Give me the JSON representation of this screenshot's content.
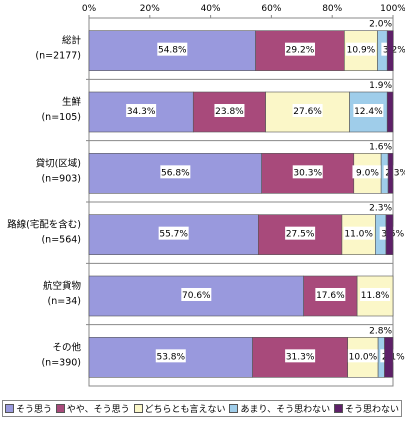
{
  "chart_data": {
    "type": "bar",
    "orientation": "horizontal",
    "stacked": true,
    "x_ticks": [
      "0%",
      "20%",
      "40%",
      "60%",
      "80%",
      "100%"
    ],
    "xlim": [
      0,
      100
    ],
    "categories": [
      {
        "name": "総計",
        "n": "(n=2177)"
      },
      {
        "name": "生鮮",
        "n": "(n=105)"
      },
      {
        "name": "貸切(区域)",
        "n": "(n=903)"
      },
      {
        "name": "路線(宅配を含む)",
        "n": "(n=564)"
      },
      {
        "name": "航空貨物",
        "n": "(n=34)"
      },
      {
        "name": "その他",
        "n": "(n=390)"
      }
    ],
    "series": [
      {
        "name": "そう思う",
        "color": "#9999dd",
        "values": [
          54.8,
          34.3,
          56.8,
          55.7,
          70.6,
          53.8
        ]
      },
      {
        "name": "やや、そう思う",
        "color": "#a84a7b",
        "values": [
          29.2,
          23.8,
          30.3,
          27.5,
          17.6,
          31.3
        ]
      },
      {
        "name": "どちらとも言えない",
        "color": "#fbf7c8",
        "values": [
          10.9,
          27.6,
          9.0,
          11.0,
          11.8,
          10.0
        ]
      },
      {
        "name": "あまり、そう思わない",
        "color": "#9fcdea",
        "values": [
          3.2,
          12.4,
          2.3,
          3.5,
          0,
          2.1
        ]
      },
      {
        "name": "そう思わない",
        "color": "#5e2068",
        "values": [
          2.0,
          1.9,
          1.6,
          2.3,
          0,
          2.8
        ]
      }
    ],
    "legend_position": "bottom"
  }
}
